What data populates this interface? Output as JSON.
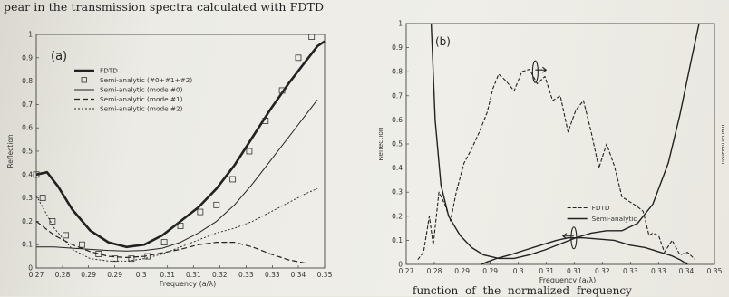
{
  "page": {
    "top_text": "pear in the transmission spectra calculated with FDTD",
    "bottom_text": "function of the normalized frequency"
  },
  "chart_data": [
    {
      "type": "line",
      "panel_label": "(a)",
      "xlabel": "Frequency (a/λ)",
      "ylabel": "Reflection",
      "xlim": [
        0.27,
        0.35
      ],
      "ylim": [
        0,
        1
      ],
      "x_ticks": [
        "0.27",
        "0.28",
        "0.29",
        "0.29",
        "0.3",
        "0.31",
        "0.31",
        "0.32",
        "0.33",
        "0.33",
        "0.34",
        "0.35"
      ],
      "x_tick_values": [
        0.27,
        0.2773,
        0.2845,
        0.2918,
        0.2991,
        0.3064,
        0.3136,
        0.3209,
        0.3282,
        0.3355,
        0.3427,
        0.35
      ],
      "y_ticks": [
        "0",
        "0.1",
        "0.2",
        "0.3",
        "0.4",
        "0.5",
        "0.6",
        "0.7",
        "0.8",
        "0.9",
        "1"
      ],
      "legend": [
        "FDTD",
        "Semi-analytic (#0+#1+#2)",
        "Semi-analytic (mode #0)",
        "Semi-analytic (mode #1)",
        "Semi-analytic (mode #2)"
      ],
      "series": [
        {
          "name": "FDTD",
          "style": "thick",
          "x": [
            0.27,
            0.273,
            0.276,
            0.28,
            0.285,
            0.29,
            0.295,
            0.3,
            0.305,
            0.31,
            0.315,
            0.32,
            0.325,
            0.33,
            0.335,
            0.34,
            0.345,
            0.348,
            0.35
          ],
          "y": [
            0.4,
            0.41,
            0.35,
            0.25,
            0.16,
            0.11,
            0.09,
            0.1,
            0.14,
            0.2,
            0.26,
            0.34,
            0.44,
            0.56,
            0.68,
            0.79,
            0.89,
            0.95,
            0.97
          ]
        },
        {
          "name": "Semi-analytic (#0+#1+#2)",
          "style": "markers",
          "x": [
            0.27,
            0.2718,
            0.2745,
            0.2782,
            0.2827,
            0.2873,
            0.2918,
            0.2964,
            0.3009,
            0.3055,
            0.31,
            0.3155,
            0.32,
            0.3245,
            0.3291,
            0.3336,
            0.3382,
            0.3427,
            0.3464
          ],
          "y": [
            0.4,
            0.3,
            0.2,
            0.14,
            0.1,
            0.06,
            0.04,
            0.04,
            0.05,
            0.11,
            0.18,
            0.24,
            0.27,
            0.38,
            0.5,
            0.63,
            0.76,
            0.9,
            0.99
          ]
        },
        {
          "name": "Semi-analytic (mode #0)",
          "style": "thin",
          "x": [
            0.27,
            0.275,
            0.28,
            0.285,
            0.29,
            0.295,
            0.3,
            0.305,
            0.31,
            0.315,
            0.32,
            0.325,
            0.33,
            0.335,
            0.34,
            0.345,
            0.348
          ],
          "y": [
            0.09,
            0.09,
            0.085,
            0.08,
            0.075,
            0.073,
            0.075,
            0.085,
            0.11,
            0.15,
            0.2,
            0.27,
            0.36,
            0.46,
            0.56,
            0.66,
            0.72
          ]
        },
        {
          "name": "Semi-analytic (mode #1)",
          "style": "dashed",
          "x": [
            0.27,
            0.275,
            0.28,
            0.285,
            0.29,
            0.295,
            0.3,
            0.305,
            0.31,
            0.315,
            0.32,
            0.325,
            0.33,
            0.335,
            0.34,
            0.345
          ],
          "y": [
            0.2,
            0.14,
            0.1,
            0.07,
            0.05,
            0.045,
            0.05,
            0.065,
            0.08,
            0.1,
            0.11,
            0.11,
            0.09,
            0.06,
            0.035,
            0.02
          ]
        },
        {
          "name": "Semi-analytic (mode #2)",
          "style": "dotted",
          "x": [
            0.27,
            0.275,
            0.28,
            0.285,
            0.29,
            0.295,
            0.3,
            0.305,
            0.31,
            0.315,
            0.32,
            0.325,
            0.33,
            0.335,
            0.34,
            0.345,
            0.348
          ],
          "y": [
            0.31,
            0.17,
            0.08,
            0.04,
            0.03,
            0.03,
            0.04,
            0.06,
            0.09,
            0.12,
            0.15,
            0.17,
            0.2,
            0.24,
            0.28,
            0.32,
            0.34
          ]
        }
      ]
    },
    {
      "type": "line",
      "panel_label": "(b)",
      "xlabel": "Frequency (a/λ)",
      "ylabel": "Reflection",
      "y2label": "Transmission",
      "xlim": [
        0.27,
        0.35
      ],
      "ylim": [
        0,
        1
      ],
      "x_ticks": [
        "0.27",
        "0.28",
        "0.29",
        "0.29",
        "0.3",
        "0.31",
        "0.31",
        "0.32",
        "0.33",
        "0.33",
        "0.34",
        "0.35"
      ],
      "x_tick_values": [
        0.27,
        0.2773,
        0.2845,
        0.2918,
        0.2991,
        0.3064,
        0.3136,
        0.3209,
        0.3282,
        0.3355,
        0.3427,
        0.35
      ],
      "y_ticks": [
        "0",
        "0.1",
        "0.2",
        "0.3",
        "0.4",
        "0.5",
        "0.6",
        "0.7",
        "0.8",
        "0.9",
        "1"
      ],
      "legend": [
        "FDTD",
        "Semi-analytic"
      ],
      "series": [
        {
          "name": "FDTD",
          "style": "dashed",
          "x": [
            0.273,
            0.2745,
            0.276,
            0.277,
            0.2785,
            0.28,
            0.2815,
            0.283,
            0.285,
            0.287,
            0.289,
            0.291,
            0.2925,
            0.294,
            0.296,
            0.298,
            0.3,
            0.302,
            0.304,
            0.306,
            0.308,
            0.31,
            0.312,
            0.314,
            0.316,
            0.318,
            0.32,
            0.322,
            0.324,
            0.326,
            0.328,
            0.33,
            0.3315,
            0.333,
            0.334,
            0.3355,
            0.337,
            0.339,
            0.341,
            0.343,
            0.345
          ],
          "y": [
            0.02,
            0.05,
            0.2,
            0.08,
            0.3,
            0.25,
            0.18,
            0.3,
            0.42,
            0.48,
            0.55,
            0.63,
            0.73,
            0.79,
            0.76,
            0.72,
            0.8,
            0.81,
            0.75,
            0.78,
            0.68,
            0.7,
            0.55,
            0.64,
            0.68,
            0.55,
            0.4,
            0.5,
            0.41,
            0.28,
            0.26,
            0.24,
            0.22,
            0.12,
            0.13,
            0.12,
            0.05,
            0.1,
            0.04,
            0.05,
            0.02
          ]
        },
        {
          "name": "Semi-analytic (reflection)",
          "style": "solid",
          "x": [
            0.2765,
            0.2775,
            0.279,
            0.281,
            0.284,
            0.287,
            0.29,
            0.294,
            0.298,
            0.302,
            0.306,
            0.31,
            0.314,
            0.318,
            0.322,
            0.326,
            0.33,
            0.334,
            0.338,
            0.341,
            0.344,
            0.346
          ],
          "y": [
            1.0,
            0.6,
            0.33,
            0.2,
            0.12,
            0.07,
            0.04,
            0.025,
            0.025,
            0.04,
            0.06,
            0.085,
            0.11,
            0.13,
            0.14,
            0.14,
            0.17,
            0.25,
            0.42,
            0.62,
            0.85,
            1.0
          ]
        },
        {
          "name": "Semi-analytic (transmission)",
          "style": "solid",
          "x": [
            0.2895,
            0.291,
            0.2935,
            0.297,
            0.301,
            0.305,
            0.309,
            0.312,
            0.316,
            0.32,
            0.324,
            0.328,
            0.332,
            0.336,
            0.339,
            0.341,
            0.343
          ],
          "y": [
            0.0,
            0.01,
            0.025,
            0.04,
            0.06,
            0.08,
            0.1,
            0.11,
            0.11,
            0.105,
            0.1,
            0.08,
            0.07,
            0.05,
            0.035,
            0.02,
            0.0
          ]
        }
      ]
    }
  ]
}
